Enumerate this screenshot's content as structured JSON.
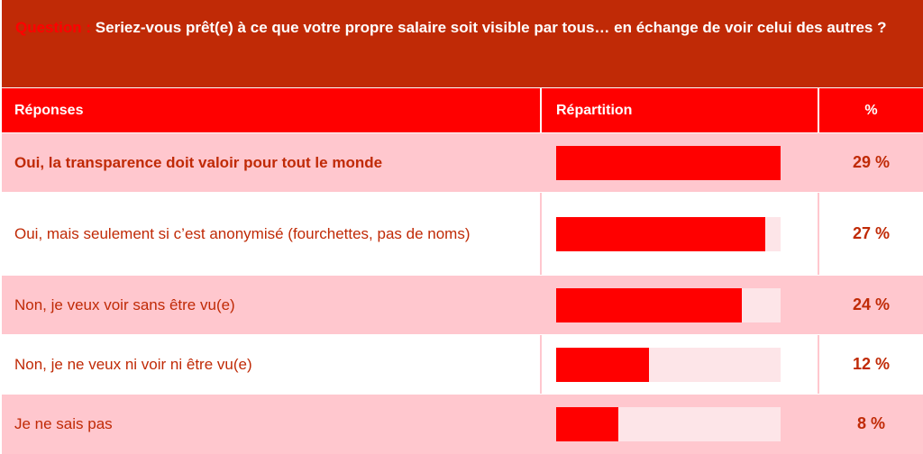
{
  "question": {
    "label": "Question :",
    "text": "Seriez-vous prêt(e) à ce que votre propre salaire soit visible par tous… en échange de voir celui des autres ?"
  },
  "headers": {
    "responses": "Réponses",
    "distribution": "Répartition",
    "percent": "%"
  },
  "colors": {
    "question_bg": "#c02a06",
    "header_bg": "#ff0000",
    "row_alt_bg": "#ffc7ce",
    "bar_fill": "#ff0000",
    "bar_track": "#fde5e8",
    "text": "#c02a06"
  },
  "chart_data": {
    "type": "bar",
    "orientation": "horizontal",
    "categories": [
      "Oui, la transparence doit valoir pour tout le monde",
      "Oui, mais seulement si c’est anonymisé (fourchettes, pas de noms)",
      "Non, je veux voir sans être vu(e)",
      "Non, je ne veux ni voir ni être vu(e)",
      "Je ne sais pas"
    ],
    "values": [
      29,
      27,
      24,
      12,
      8
    ],
    "value_labels": [
      "29 %",
      "27 %",
      "24 %",
      "12 %",
      "8 %"
    ],
    "xlim": [
      0,
      29
    ]
  }
}
